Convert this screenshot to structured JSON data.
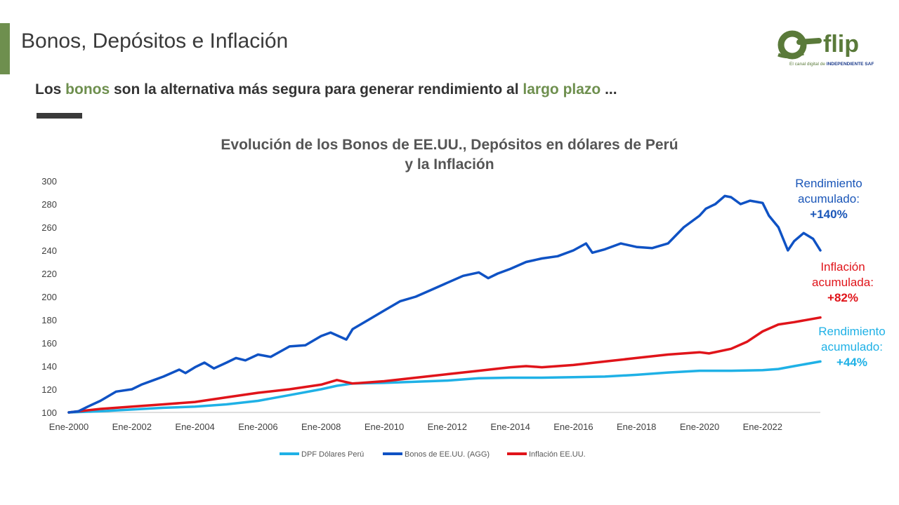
{
  "header": {
    "title": "Bonos, Depósitos e Inflación",
    "subtitle_parts": [
      "Los ",
      "bonos",
      " son la alternativa más segura para generar rendimiento  al ",
      "largo plazo",
      " ..."
    ]
  },
  "logo": {
    "name": "flip",
    "tagline_prefix": "El canal digital de ",
    "tagline_brand": "INDEPENDIENTE SAF"
  },
  "colors": {
    "accent": "#6e8f4e",
    "dpf": "#1fb1e6",
    "bonos": "#0f52c4",
    "inflacion": "#e0141a"
  },
  "annotations": [
    {
      "line1": "Rendimiento",
      "line2": "acumulado:",
      "value": "+140%",
      "color": "#1a56b8"
    },
    {
      "line1": "Inflación",
      "line2": "acumulada:",
      "value": "+82%",
      "color": "#e0141a"
    },
    {
      "line1": "Rendimiento",
      "line2": "acumulado:",
      "value": "+44%",
      "color": "#1fb1e6"
    }
  ],
  "chart_data": {
    "type": "line",
    "title": "Evolución de los Bonos de EE.UU., Depósitos en dólares de Perú y la Inflación",
    "title_lines": [
      "Evolución de los Bonos de EE.UU., Depósitos en dólares de Perú",
      "y la Inflación"
    ],
    "xlabel": "",
    "ylabel": "",
    "ylim": [
      100,
      300
    ],
    "y_ticks": [
      100,
      120,
      140,
      160,
      180,
      200,
      220,
      240,
      260,
      280,
      300
    ],
    "x_range": [
      2000,
      2023.83
    ],
    "x_ticks": [
      "Ene-2000",
      "Ene-2002",
      "Ene-2004",
      "Ene-2006",
      "Ene-2008",
      "Ene-2010",
      "Ene-2012",
      "Ene-2014",
      "Ene-2016",
      "Ene-2018",
      "Ene-2020",
      "Ene-2022"
    ],
    "x_tick_years": [
      2000,
      2002,
      2004,
      2006,
      2008,
      2010,
      2012,
      2014,
      2016,
      2018,
      2020,
      2022
    ],
    "grid": false,
    "legend_position": "bottom",
    "series": [
      {
        "name": "DPF Dólares Perú",
        "color": "#1fb1e6",
        "x": [
          2000,
          2001,
          2002,
          2003,
          2004,
          2005,
          2006,
          2007,
          2008,
          2008.5,
          2009,
          2010,
          2011,
          2012,
          2013,
          2014,
          2015,
          2016,
          2017,
          2018,
          2019,
          2020,
          2021,
          2022,
          2022.5,
          2023,
          2023.83
        ],
        "y": [
          100,
          101,
          102.5,
          104,
          105,
          107,
          110,
          115,
          120,
          123,
          125,
          125.5,
          126.5,
          127.5,
          129.5,
          130,
          130,
          130.5,
          131,
          132.5,
          134.5,
          136,
          136,
          136.5,
          137.5,
          140,
          144
        ]
      },
      {
        "name": "Bonos de EE.UU. (AGG)",
        "color": "#0f52c4",
        "x": [
          2000,
          2000.3,
          2000.6,
          2001,
          2001.5,
          2002,
          2002.3,
          2002.7,
          2003,
          2003.5,
          2003.7,
          2004,
          2004.3,
          2004.6,
          2005,
          2005.3,
          2005.6,
          2006,
          2006.4,
          2006.8,
          2007,
          2007.5,
          2008,
          2008.3,
          2008.8,
          2009,
          2009.5,
          2010,
          2010.5,
          2011,
          2011.5,
          2012,
          2012.5,
          2013,
          2013.3,
          2013.6,
          2014,
          2014.5,
          2015,
          2015.5,
          2016,
          2016.4,
          2016.6,
          2017,
          2017.5,
          2018,
          2018.5,
          2019,
          2019.5,
          2020,
          2020.2,
          2020.5,
          2020.8,
          2021,
          2021.3,
          2021.6,
          2022,
          2022.2,
          2022.5,
          2022.8,
          2023,
          2023.3,
          2023.6,
          2023.83
        ],
        "y": [
          100,
          101,
          105,
          110,
          118,
          120,
          124,
          128,
          131,
          137,
          134,
          139,
          143,
          138,
          143,
          147,
          145,
          150,
          148,
          154,
          157,
          158,
          166,
          169,
          163,
          172,
          180,
          188,
          196,
          200,
          206,
          212,
          218,
          221,
          216,
          220,
          224,
          230,
          233,
          235,
          240,
          246,
          238,
          241,
          246,
          243,
          242,
          246,
          260,
          270,
          276,
          280,
          287,
          286,
          280,
          283,
          281,
          270,
          260,
          240,
          248,
          255,
          250,
          240
        ]
      },
      {
        "name": "Inflación EE.UU.",
        "color": "#e0141a",
        "x": [
          2000,
          2001,
          2002,
          2003,
          2004,
          2005,
          2006,
          2007,
          2008,
          2008.5,
          2009,
          2010,
          2011,
          2012,
          2013,
          2014,
          2014.5,
          2015,
          2016,
          2017,
          2018,
          2019,
          2020,
          2020.3,
          2021,
          2021.5,
          2022,
          2022.5,
          2023,
          2023.83
        ],
        "y": [
          100,
          103,
          105,
          107,
          109,
          113,
          117,
          120,
          124,
          128,
          125,
          127,
          130,
          133,
          136,
          139,
          140,
          139,
          141,
          144,
          147,
          150,
          152,
          151,
          155,
          161,
          170,
          176,
          178,
          182
        ]
      }
    ]
  }
}
